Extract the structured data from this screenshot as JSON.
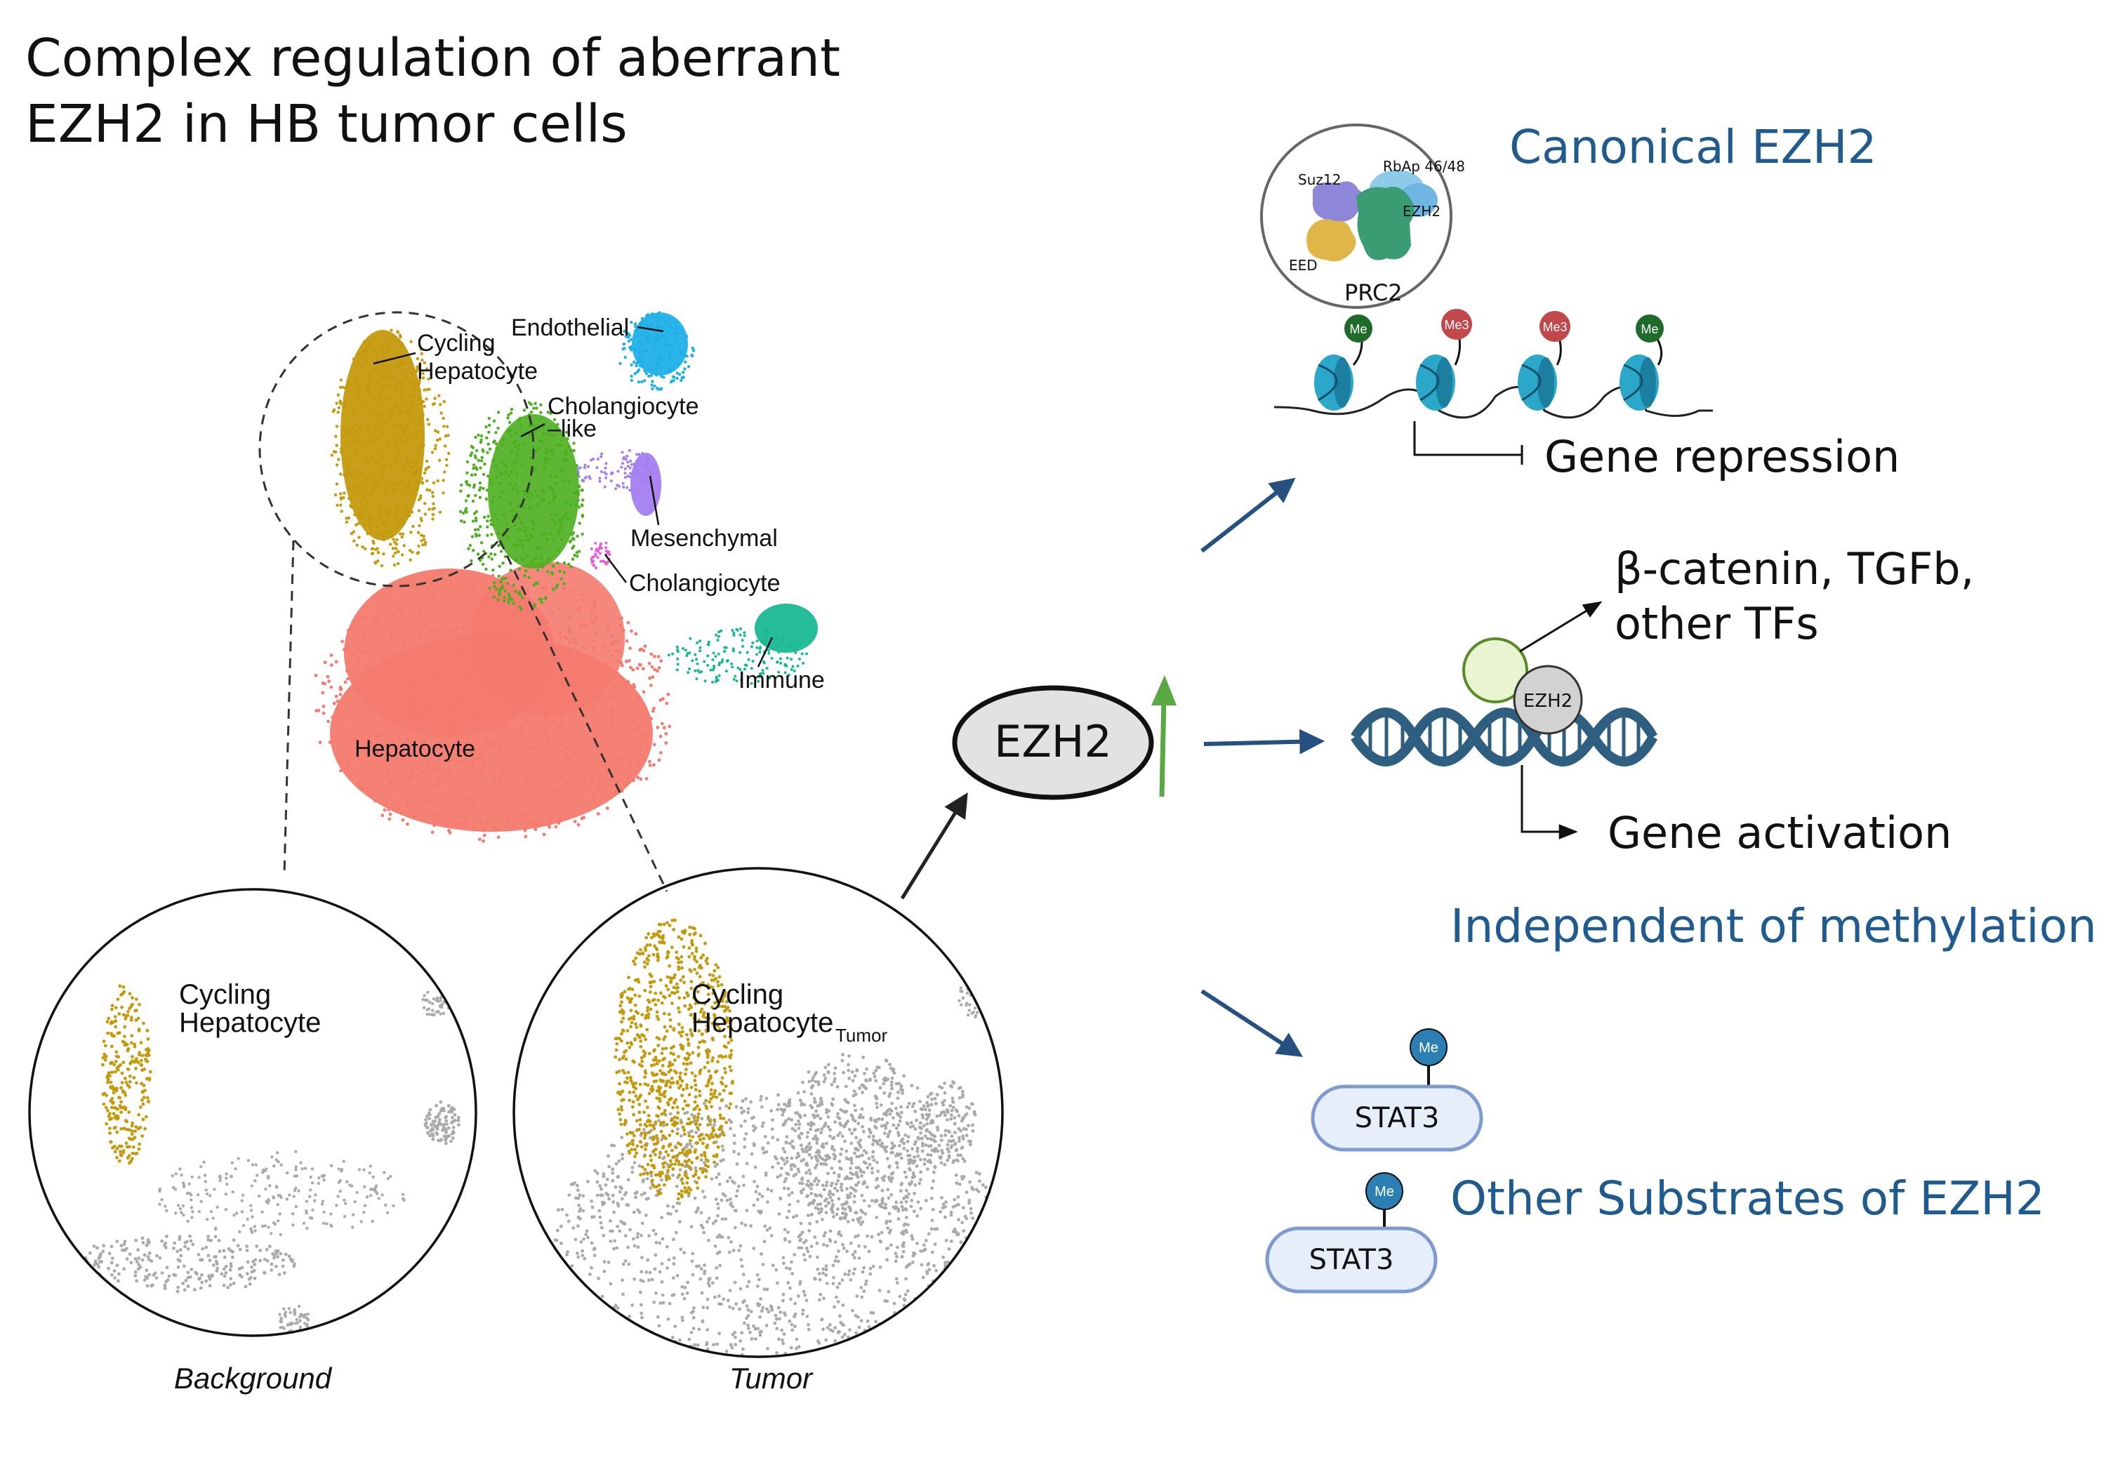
{
  "title": {
    "line1": "Complex regulation of aberrant",
    "line2": "EZH2 in HB tumor cells"
  },
  "umap": {
    "clusters": [
      {
        "key": "cyc_hep",
        "label_lines": [
          "Cycling",
          "Hepatocyte"
        ],
        "color": "#c49a0c"
      },
      {
        "key": "endothelial",
        "label_lines": [
          "Endothelial"
        ],
        "color": "#20b0e8"
      },
      {
        "key": "cholangio_like",
        "label_lines": [
          "Cholangiocyte",
          "–like"
        ],
        "color": "#4caf1e"
      },
      {
        "key": "mesenchymal",
        "label_lines": [
          "Mesenchymal"
        ],
        "color": "#a37ef0"
      },
      {
        "key": "cholangiocyte",
        "label_lines": [
          "Cholangiocyte"
        ],
        "color": "#e85fd6"
      },
      {
        "key": "immune",
        "label_lines": [
          "Immune"
        ],
        "color": "#18b894"
      },
      {
        "key": "hepatocyte",
        "label_lines": [
          "Hepatocyte"
        ],
        "color": "#f47a6e"
      }
    ]
  },
  "zoom": {
    "background": {
      "label_lines": [
        "Cycling",
        "Hepatocyte"
      ],
      "caption": "Background"
    },
    "tumor": {
      "label_lines": [
        "Cycling",
        "Hepatocyte"
      ],
      "subscript": "Tumor",
      "caption": "Tumor"
    }
  },
  "ezh2_node": {
    "label": "EZH2"
  },
  "canonical": {
    "heading": "Canonical EZH2",
    "prc2": {
      "label": "PRC2",
      "subunits": [
        "Suz12",
        "RbAp 46/48",
        "EZH2",
        "EED"
      ]
    },
    "marks": [
      "Me",
      "Me3",
      "Me3",
      "Me"
    ],
    "outcome": "Gene repression"
  },
  "independent": {
    "heading": "Independent of methylation",
    "partners_line1": "β-catenin, TGFb,",
    "partners_line2": "other TFs",
    "ezh2_label": "EZH2",
    "outcome": "Gene activation"
  },
  "substrates": {
    "heading": "Other Substrates of EZH2",
    "items": [
      {
        "label": "STAT3",
        "mark": "Me"
      },
      {
        "label": "STAT3",
        "mark": "Me"
      }
    ]
  },
  "colors": {
    "heading_blue": "#1f5b8e",
    "arrow_blue": "#26507f",
    "up_arrow_green": "#5aa844",
    "nucleosome": "#2aa7c9",
    "dna": "#2f5f80",
    "me_green": "#1e6b2a",
    "me3_red": "#c0474a",
    "me_blue": "#2b7fb3",
    "cell_grey": "#aaaaaa"
  }
}
